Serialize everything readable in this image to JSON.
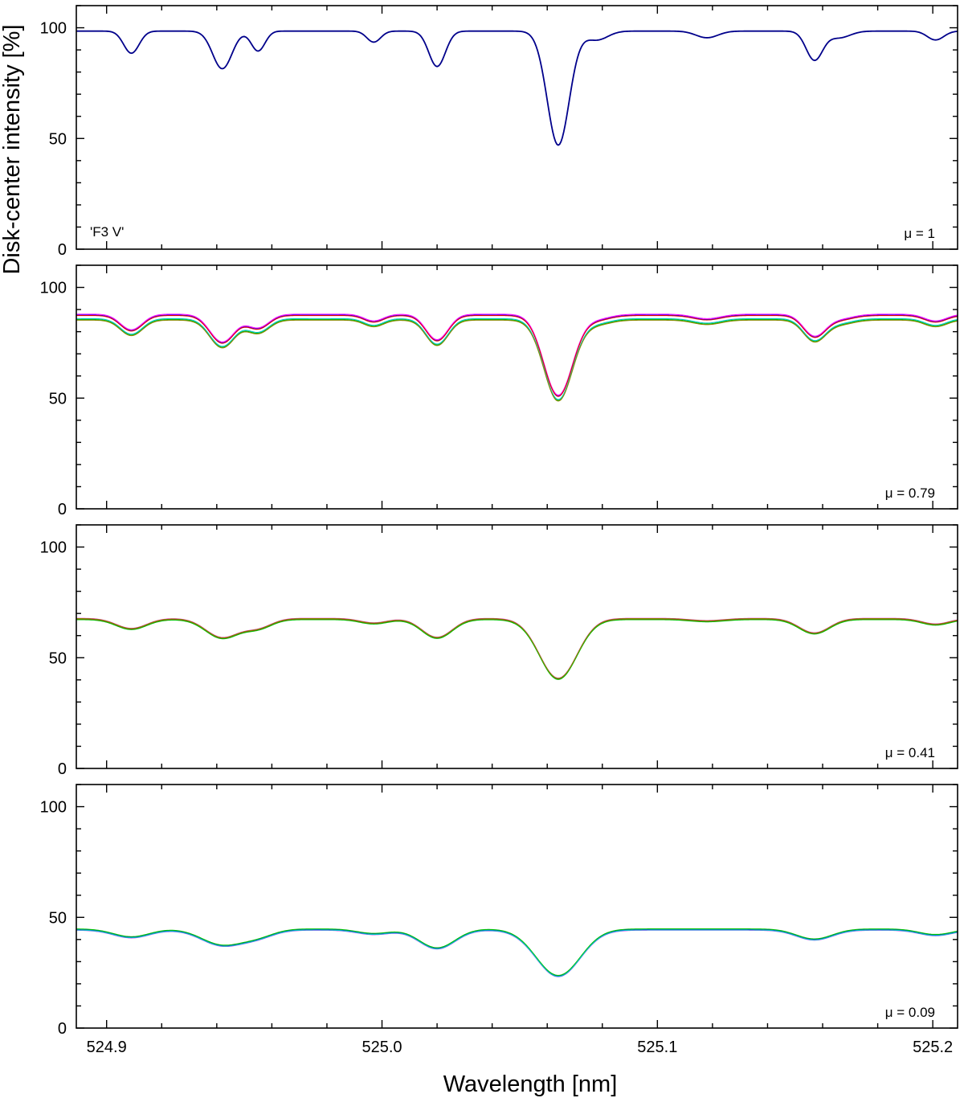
{
  "chart_data": {
    "type": "line",
    "ylabel": "Disk-center intensity [%]",
    "xlabel": "Wavelength [nm]",
    "xlim": [
      524.889,
      525.209
    ],
    "x_ticks": [
      "524.9",
      "525.0",
      "525.1",
      "525.2"
    ],
    "x_tick_values": [
      524.9,
      525.0,
      525.1,
      525.2
    ],
    "ylim": [
      0,
      110
    ],
    "y_ticks": [
      "0",
      "50",
      "100"
    ],
    "y_tick_values": [
      0,
      50,
      100
    ],
    "grid": false,
    "legend": "none",
    "star_label": "'F3 V'",
    "colors": [
      "#00008b",
      "#0000ff",
      "#ff00ff",
      "#00c000",
      "#00c8c8",
      "#dd0000",
      "#888800"
    ],
    "panels": [
      {
        "mu_label": "μ = 1",
        "continuum": 98.5,
        "lines_depth_width": [
          [
            524.909,
            10,
            0.0028
          ],
          [
            524.942,
            17,
            0.0035
          ],
          [
            524.955,
            9,
            0.0025
          ],
          [
            524.997,
            5,
            0.0025
          ],
          [
            525.02,
            16,
            0.003
          ],
          [
            525.064,
            51.5,
            0.004
          ],
          [
            525.078,
            4,
            0.004
          ],
          [
            525.118,
            3,
            0.004
          ],
          [
            525.157,
            13,
            0.003
          ],
          [
            525.166,
            3,
            0.004
          ],
          [
            525.201,
            4,
            0.003
          ]
        ],
        "series": [
          {
            "color_index": 0,
            "offset": 0.0
          }
        ]
      },
      {
        "mu_label": "μ = 0.79",
        "continuum": 87.5,
        "lines_depth_width": [
          [
            524.909,
            7,
            0.004
          ],
          [
            524.942,
            12.5,
            0.0045
          ],
          [
            524.955,
            6,
            0.004
          ],
          [
            524.997,
            3,
            0.0035
          ],
          [
            525.02,
            11.5,
            0.004
          ],
          [
            525.064,
            36.5,
            0.0052
          ],
          [
            525.078,
            2,
            0.005
          ],
          [
            525.118,
            2,
            0.005
          ],
          [
            525.157,
            9.5,
            0.004
          ],
          [
            525.166,
            2,
            0.005
          ],
          [
            525.201,
            3,
            0.004
          ]
        ],
        "series": [
          {
            "color_index": 1,
            "offset": 0.0
          },
          {
            "color_index": 2,
            "offset": 0.4
          },
          {
            "color_index": 5,
            "offset": -0.2
          },
          {
            "color_index": 3,
            "offset": -2.0
          },
          {
            "color_index": 4,
            "offset": -1.6
          },
          {
            "color_index": 6,
            "offset": -2.3
          }
        ]
      },
      {
        "mu_label": "μ = 0.41",
        "continuum": 67.5,
        "lines_depth_width": [
          [
            524.909,
            4.5,
            0.0055
          ],
          [
            524.942,
            8.5,
            0.006
          ],
          [
            524.955,
            4,
            0.005
          ],
          [
            524.997,
            2,
            0.005
          ],
          [
            525.02,
            8.5,
            0.0055
          ],
          [
            525.064,
            27,
            0.0068
          ],
          [
            525.118,
            1,
            0.006
          ],
          [
            525.157,
            6.5,
            0.0055
          ],
          [
            525.201,
            2.5,
            0.005
          ]
        ],
        "series": [
          {
            "color_index": 1,
            "offset": 0.0
          },
          {
            "color_index": 2,
            "offset": 0.3
          },
          {
            "color_index": 5,
            "offset": -0.1
          },
          {
            "color_index": 3,
            "offset": -0.3
          },
          {
            "color_index": 6,
            "offset": 0.2
          }
        ]
      },
      {
        "mu_label": "μ = 0.09",
        "continuum": 44.5,
        "lines_depth_width": [
          [
            524.909,
            3.5,
            0.0065
          ],
          [
            524.942,
            7,
            0.0075
          ],
          [
            524.955,
            3,
            0.006
          ],
          [
            524.997,
            2,
            0.006
          ],
          [
            525.02,
            8.5,
            0.0065
          ],
          [
            525.064,
            21,
            0.008
          ],
          [
            525.157,
            4.5,
            0.0065
          ],
          [
            525.201,
            2.5,
            0.006
          ]
        ],
        "series": [
          {
            "color_index": 1,
            "offset": 0.0
          },
          {
            "color_index": 2,
            "offset": -0.3
          },
          {
            "color_index": 3,
            "offset": 0.3
          },
          {
            "color_index": 4,
            "offset": -0.2
          }
        ]
      }
    ]
  }
}
